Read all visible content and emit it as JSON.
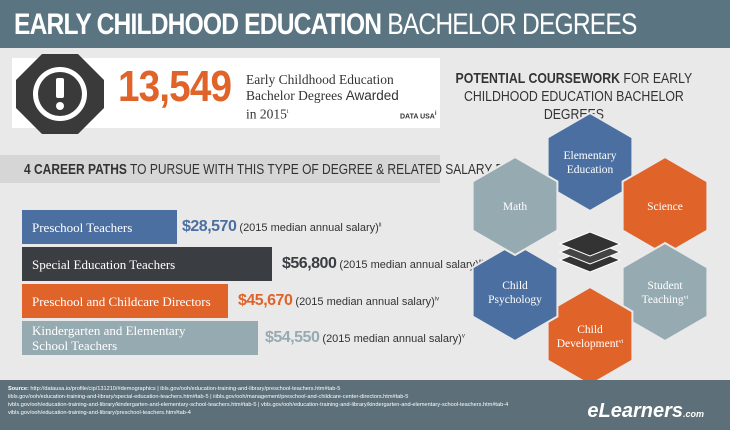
{
  "header": {
    "title_bold": "EARLY CHILDHOOD EDUCATION",
    "title_light": "BACHELOR DEGREES"
  },
  "stat": {
    "value": "13,549",
    "lines": [
      "Early Childhood Education",
      "Bachelor Degrees",
      "Awarded",
      "in 2015"
    ],
    "note": "i",
    "source": "DATA USA",
    "source_note": "i"
  },
  "careers": {
    "heading_bold": "4 CAREER PATHS",
    "heading_rest": "TO PURSUE WITH THIS TYPE OF DEGREE & RELATED SALARY DATA",
    "items": [
      {
        "title": [
          "Preschool Teachers"
        ],
        "salary": "$28,570",
        "detail": "(2015 median annual salary)",
        "note": "ii"
      },
      {
        "title": [
          "Special Education Teachers"
        ],
        "salary": "$56,800",
        "detail": "(2015 median annual salary)",
        "note": "iii"
      },
      {
        "title": [
          "Preschool and Childcare Directors"
        ],
        "salary": "$45,670",
        "detail": "(2015 median annual salary)",
        "note": "iv"
      },
      {
        "title": [
          "Kindergarten and Elementary",
          "School Teachers"
        ],
        "salary": "$54,550",
        "detail": "(2015 median annual salary)",
        "note": "v"
      }
    ]
  },
  "coursework": {
    "title_bold": "POTENTIAL COURSEWORK",
    "title_rest": "FOR EARLY",
    "title_line2": "CHILDHOOD EDUCATION BACHELOR DEGREES",
    "items": [
      {
        "label": [
          "Elementary",
          "Education"
        ]
      },
      {
        "label": [
          "Science"
        ]
      },
      {
        "label": [
          "Student",
          "Teaching"
        ],
        "note": "vi"
      },
      {
        "label": [
          "Child",
          "Development"
        ],
        "note": "vi"
      },
      {
        "label": [
          "Child",
          "Psychology"
        ]
      },
      {
        "label": [
          "Math"
        ]
      }
    ]
  },
  "footer": {
    "source_label": "Source:",
    "lines": [
      "http://datausa.io/profile/cip/131210/#demographics | ibls.gov/ooh/education-training-and-library/preschool-teachers.htm#tab-5",
      "iibls.gov/ooh/education-training-and-library/special-education-teachers.htm#tab-5 | iiibls.gov/ooh/management/preschool-and-childcare-center-directors.htm#tab-5",
      "ivbls.gov/ooh/education-training-and-library/kindergarten-and-elementary-school-teachers.htm#tab-5 | vbls.gov/ooh/education-training-and-library/kindergarten-and-elementary-school-teachers.htm#tab-4",
      "vibls.gov/ooh/education-training-and-library/preschool-teachers.htm#tab-4"
    ],
    "logo": "eLearners",
    "logo_suffix": ".com"
  }
}
